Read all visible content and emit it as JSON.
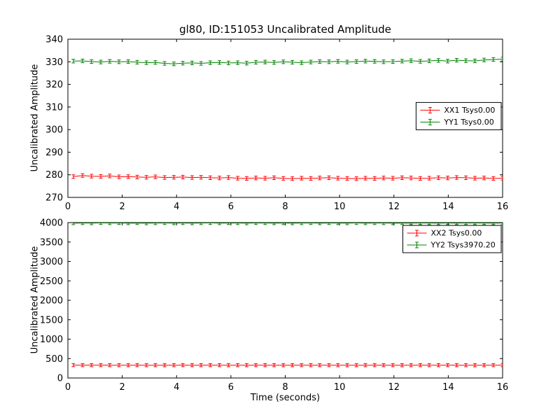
{
  "figure_title": "gl80, ID:151053 Uncalibrated Amplitude",
  "chart_data": [
    {
      "type": "line",
      "title": "gl80, ID:151053 Uncalibrated Amplitude",
      "xlabel": "",
      "ylabel": "Uncalibrated Amplitude",
      "xlim": [
        0,
        16
      ],
      "ylim": [
        270,
        340
      ],
      "xticks": [
        0,
        2,
        4,
        6,
        8,
        10,
        12,
        14,
        16
      ],
      "yticks": [
        270,
        280,
        290,
        300,
        310,
        320,
        330,
        340
      ],
      "grid": false,
      "legend_position": "center-right",
      "x": [
        0.2,
        0.54,
        0.87,
        1.21,
        1.54,
        1.88,
        2.22,
        2.55,
        2.89,
        3.22,
        3.56,
        3.9,
        4.23,
        4.57,
        4.9,
        5.24,
        5.58,
        5.91,
        6.25,
        6.58,
        6.92,
        7.26,
        7.59,
        7.93,
        8.26,
        8.6,
        8.94,
        9.27,
        9.61,
        9.94,
        10.28,
        10.62,
        10.95,
        11.29,
        11.62,
        11.96,
        12.3,
        12.63,
        12.97,
        13.3,
        13.64,
        13.98,
        14.31,
        14.65,
        14.98,
        15.32,
        15.66,
        16.0
      ],
      "series": [
        {
          "name": "XX1 Tsys0.00",
          "color": "#ff0000",
          "yerr": 0.8,
          "values": [
            279.2,
            279.7,
            279.4,
            279.3,
            279.5,
            279.1,
            279.2,
            279.0,
            278.9,
            279.1,
            278.8,
            278.9,
            279.0,
            278.8,
            278.9,
            278.7,
            278.6,
            278.8,
            278.5,
            278.4,
            278.6,
            278.5,
            278.7,
            278.4,
            278.3,
            278.5,
            278.4,
            278.6,
            278.7,
            278.5,
            278.4,
            278.3,
            278.5,
            278.4,
            278.6,
            278.5,
            278.7,
            278.6,
            278.4,
            278.5,
            278.7,
            278.6,
            278.8,
            278.7,
            278.5,
            278.6,
            278.4,
            278.5
          ]
        },
        {
          "name": "YY1 Tsys0.00",
          "color": "#008000",
          "yerr": 0.8,
          "values": [
            330.3,
            330.4,
            330.1,
            329.9,
            330.2,
            330.0,
            330.1,
            329.8,
            329.6,
            329.7,
            329.3,
            329.1,
            329.4,
            329.5,
            329.3,
            329.6,
            329.7,
            329.5,
            329.6,
            329.4,
            329.8,
            329.9,
            329.7,
            330.0,
            329.8,
            329.6,
            329.9,
            330.1,
            330.0,
            330.2,
            329.9,
            330.1,
            330.3,
            330.2,
            330.0,
            330.1,
            330.3,
            330.5,
            330.2,
            330.4,
            330.6,
            330.3,
            330.7,
            330.5,
            330.4,
            330.8,
            331.0,
            331.2
          ]
        }
      ]
    },
    {
      "type": "line",
      "title": "",
      "xlabel": "Time (seconds)",
      "ylabel": "Uncalibrated Amplitude",
      "xlim": [
        0,
        16
      ],
      "ylim": [
        0,
        4000
      ],
      "xticks": [
        0,
        2,
        4,
        6,
        8,
        10,
        12,
        14,
        16
      ],
      "yticks": [
        0,
        500,
        1000,
        1500,
        2000,
        2500,
        3000,
        3500,
        4000
      ],
      "grid": false,
      "legend_position": "top-right",
      "x": [
        0.2,
        0.54,
        0.87,
        1.21,
        1.54,
        1.88,
        2.22,
        2.55,
        2.89,
        3.22,
        3.56,
        3.9,
        4.23,
        4.57,
        4.9,
        5.24,
        5.58,
        5.91,
        6.25,
        6.58,
        6.92,
        7.26,
        7.59,
        7.93,
        8.26,
        8.6,
        8.94,
        9.27,
        9.61,
        9.94,
        10.28,
        10.62,
        10.95,
        11.29,
        11.62,
        11.96,
        12.3,
        12.63,
        12.97,
        13.3,
        13.64,
        13.98,
        14.31,
        14.65,
        14.98,
        15.32,
        15.66,
        16.0
      ],
      "series": [
        {
          "name": "XX2 Tsys0.00",
          "color": "#ff0000",
          "yerr": 40,
          "values": [
            332,
            331,
            330,
            331,
            330,
            329,
            330,
            331,
            330,
            330,
            329,
            330,
            331,
            330,
            330,
            331,
            330,
            329,
            330,
            330,
            331,
            330,
            330,
            329,
            330,
            331,
            330,
            330,
            331,
            330,
            329,
            330,
            330,
            331,
            330,
            330,
            329,
            330,
            331,
            330,
            330,
            331,
            330,
            330,
            329,
            330,
            331,
            330
          ]
        },
        {
          "name": "YY2 Tsys3970.20",
          "color": "#008000",
          "yerr": 40,
          "values": [
            3988,
            3990,
            3987,
            3992,
            3989,
            3991,
            3988,
            3990,
            3986,
            3989,
            3991,
            3988,
            3990,
            3987,
            3989,
            3992,
            3988,
            3990,
            3989,
            3986,
            3991,
            3989,
            3988,
            3990,
            3987,
            3989,
            3991,
            3988,
            3990,
            3989,
            3987,
            3991,
            3988,
            3990,
            3989,
            3986,
            3990,
            3988,
            3991,
            3989,
            3987,
            3990,
            3988,
            3991,
            3989,
            3990,
            3987,
            3989
          ]
        }
      ]
    }
  ]
}
